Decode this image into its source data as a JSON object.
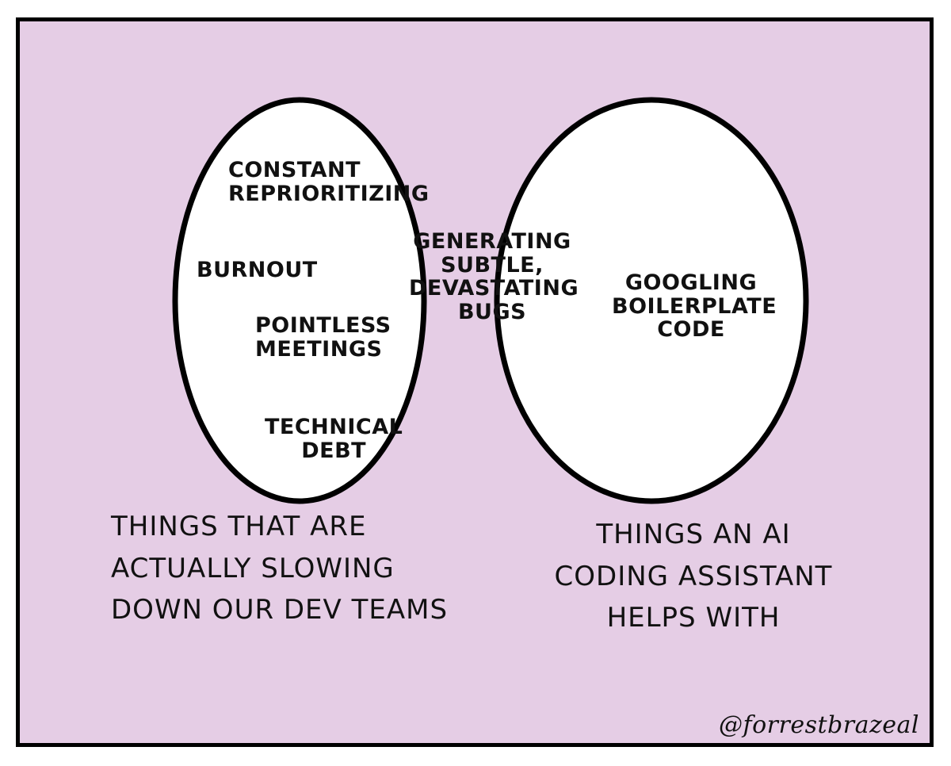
{
  "colors": {
    "background": "#e5cde5",
    "circle_fill": "#ffffff",
    "overlap_fill": "#e5cde5",
    "ink": "#111111"
  },
  "left_circle": {
    "items": [
      "CONSTANT\nREPRIORITIZING",
      "BURNOUT",
      "POINTLESS\nMEETINGS",
      "TECHNICAL\nDEBT"
    ],
    "caption": "THINGS THAT ARE\nACTUALLY SLOWING\nDOWN OUR DEV TEAMS"
  },
  "overlap": {
    "item": "GENERATING\nSUBTLE,\nDEVASTATING\nBUGS"
  },
  "right_circle": {
    "items": [
      "GOOGLING\nBOILERPLATE\nCODE"
    ],
    "caption": "THINGS AN AI\nCODING ASSISTANT\nHELPS WITH"
  },
  "signature": "@forrestbrazeal"
}
